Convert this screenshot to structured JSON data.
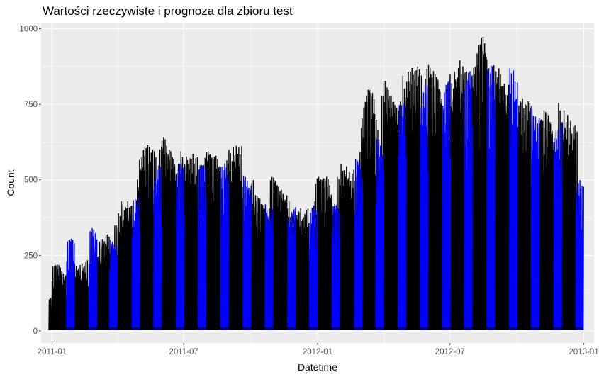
{
  "chart_data": {
    "type": "line",
    "title": "Wartości rzeczywiste i prognoza dla zbioru test",
    "xlabel": "Datetime",
    "ylabel": "Count",
    "xlim": [
      "2010-12-17",
      "2013-01-15"
    ],
    "ylim": [
      -40,
      1020
    ],
    "x_ticks": [
      "2011-01-01",
      "2011-07-01",
      "2012-01-01",
      "2012-07-01",
      "2013-01-01"
    ],
    "x_tick_labels": [
      "2011-01",
      "2011-07",
      "2012-01",
      "2012-07",
      "2013-01"
    ],
    "y_ticks": [
      0,
      250,
      500,
      750,
      1000
    ],
    "y_tick_labels": [
      "0",
      "250",
      "500",
      "750",
      "1000"
    ],
    "grid": true,
    "legend": "none",
    "series": [
      {
        "color": "#000000",
        "x": [
          "2011-01-01",
          "2011-01-05",
          "2011-01-10",
          "2011-01-15",
          "2011-01-19",
          "2011-02-01",
          "2011-02-05",
          "2011-02-10",
          "2011-02-15",
          "2011-02-19",
          "2011-03-01",
          "2011-03-05",
          "2011-03-10",
          "2011-03-15",
          "2011-03-19",
          "2011-04-01",
          "2011-04-05",
          "2011-04-10",
          "2011-04-15",
          "2011-04-19",
          "2011-05-01",
          "2011-05-05",
          "2011-05-10",
          "2011-05-15",
          "2011-05-19",
          "2011-06-01",
          "2011-06-05",
          "2011-06-10",
          "2011-06-15",
          "2011-06-19",
          "2011-07-01",
          "2011-07-05",
          "2011-07-10",
          "2011-07-15",
          "2011-07-19",
          "2011-08-01",
          "2011-08-05",
          "2011-08-10",
          "2011-08-15",
          "2011-08-19",
          "2011-09-01",
          "2011-09-05",
          "2011-09-10",
          "2011-09-15",
          "2011-09-19",
          "2011-10-01",
          "2011-10-05",
          "2011-10-10",
          "2011-10-15",
          "2011-10-19",
          "2011-11-01",
          "2011-11-05",
          "2011-11-10",
          "2011-11-15",
          "2011-11-19",
          "2011-12-01",
          "2011-12-05",
          "2011-12-10",
          "2011-12-15",
          "2011-12-19",
          "2012-01-01",
          "2012-01-05",
          "2012-01-10",
          "2012-01-15",
          "2012-01-19",
          "2012-02-01",
          "2012-02-05",
          "2012-02-10",
          "2012-02-15",
          "2012-02-19",
          "2012-03-01",
          "2012-03-05",
          "2012-03-10",
          "2012-03-15",
          "2012-03-19",
          "2012-04-01",
          "2012-04-05",
          "2012-04-10",
          "2012-04-15",
          "2012-04-19",
          "2012-05-01",
          "2012-05-05",
          "2012-05-10",
          "2012-05-15",
          "2012-05-19",
          "2012-06-01",
          "2012-06-05",
          "2012-06-10",
          "2012-06-15",
          "2012-06-19",
          "2012-07-01",
          "2012-07-05",
          "2012-07-10",
          "2012-07-15",
          "2012-07-19",
          "2012-08-01",
          "2012-08-05",
          "2012-08-10",
          "2012-08-15",
          "2012-08-19",
          "2012-09-01",
          "2012-09-05",
          "2012-09-10",
          "2012-09-15",
          "2012-09-19",
          "2012-10-01",
          "2012-10-05",
          "2012-10-10",
          "2012-10-15",
          "2012-10-19",
          "2012-11-01",
          "2012-11-05",
          "2012-11-10",
          "2012-11-15",
          "2012-11-19",
          "2012-12-01",
          "2012-12-05",
          "2012-12-10",
          "2012-12-15",
          "2012-12-19"
        ],
        "y": [
          110,
          215,
          220,
          200,
          130,
          200,
          225,
          185,
          235,
          150,
          245,
          230,
          305,
          290,
          320,
          350,
          390,
          430,
          420,
          440,
          540,
          610,
          615,
          560,
          600,
          610,
          640,
          590,
          600,
          575,
          600,
          575,
          590,
          575,
          535,
          595,
          585,
          570,
          580,
          540,
          565,
          600,
          620,
          625,
          510,
          500,
          450,
          440,
          420,
          405,
          510,
          500,
          480,
          470,
          450,
          400,
          410,
          380,
          405,
          360,
          510,
          500,
          505,
          510,
          445,
          510,
          560,
          540,
          535,
          510,
          640,
          760,
          800,
          790,
          720,
          780,
          830,
          800,
          780,
          770,
          870,
          870,
          860,
          875,
          855,
          880,
          850,
          860,
          840,
          800,
          830,
          860,
          900,
          880,
          860,
          875,
          880,
          950,
          975,
          920,
          880,
          860,
          870,
          830,
          800,
          760,
          770,
          750,
          760,
          740,
          700,
          700,
          730,
          720,
          690,
          760,
          720,
          700,
          680,
          660
        ]
      },
      {
        "color": "#0000ff",
        "x": [
          "2011-01-24",
          "2011-01-28",
          "2011-02-24",
          "2011-02-28",
          "2011-03-24",
          "2011-03-28",
          "2011-04-24",
          "2011-04-28",
          "2011-05-24",
          "2011-05-28",
          "2011-06-24",
          "2011-06-28",
          "2011-07-24",
          "2011-07-28",
          "2011-08-24",
          "2011-08-28",
          "2011-09-24",
          "2011-09-28",
          "2011-10-24",
          "2011-10-28",
          "2011-11-24",
          "2011-11-28",
          "2011-12-24",
          "2011-12-28",
          "2012-01-24",
          "2012-01-28",
          "2012-02-24",
          "2012-02-28",
          "2012-03-24",
          "2012-03-28",
          "2012-04-24",
          "2012-04-28",
          "2012-05-24",
          "2012-05-28",
          "2012-06-24",
          "2012-06-28",
          "2012-07-24",
          "2012-07-28",
          "2012-08-24",
          "2012-08-28",
          "2012-09-24",
          "2012-09-28",
          "2012-10-24",
          "2012-10-28",
          "2012-11-24",
          "2012-11-28",
          "2012-12-24",
          "2012-12-28"
        ],
        "y": [
          300,
          305,
          330,
          340,
          305,
          300,
          410,
          460,
          550,
          545,
          555,
          540,
          550,
          550,
          545,
          555,
          515,
          510,
          430,
          410,
          400,
          410,
          415,
          400,
          420,
          410,
          570,
          560,
          640,
          640,
          780,
          780,
          820,
          815,
          820,
          830,
          830,
          860,
          870,
          880,
          870,
          880,
          760,
          720,
          680,
          690,
          500,
          480
        ]
      }
    ]
  }
}
